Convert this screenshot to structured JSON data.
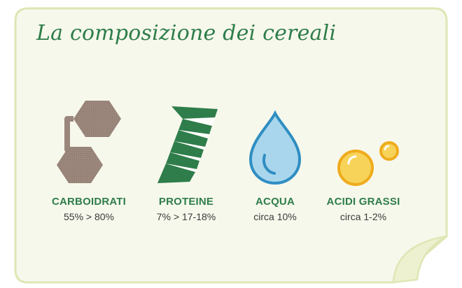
{
  "title": "La composizione dei cereali",
  "nutrients": [
    {
      "label": "CARBOIDRATI",
      "value": "55% > 80%",
      "icon": "hexagon-molecule-icon",
      "color": "#9b877b"
    },
    {
      "label": "PROTEINE",
      "value": "7% > 17-18%",
      "icon": "protein-helix-icon",
      "color": "#2e7d4a"
    },
    {
      "label": "ACQUA",
      "value": "circa 10%",
      "icon": "water-drop-icon",
      "color": "#a9d6ec"
    },
    {
      "label": "ACIDI GRASSI",
      "value": "circa 1-2%",
      "icon": "fat-bubbles-icon",
      "color": "#f6c431"
    }
  ],
  "colors": {
    "card_background": "#f7f8ec",
    "card_border": "#dfe6b5",
    "title": "#2e7d4a"
  }
}
